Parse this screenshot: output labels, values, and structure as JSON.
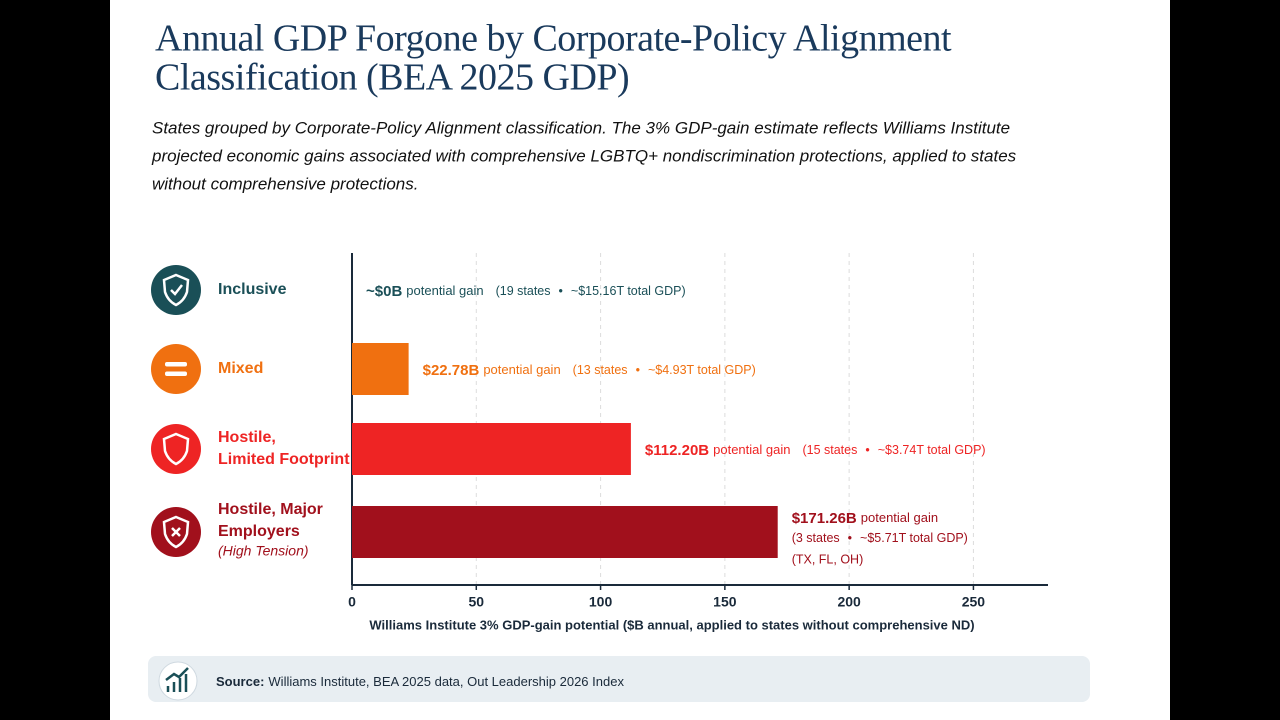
{
  "chart_data": {
    "type": "barh",
    "title": [
      "Annual GDP Forgone by Corporate-Policy Alignment",
      "Classification (BEA 2025 GDP)"
    ],
    "subtitle": [
      "States grouped by Corporate-Policy Alignment classification. The 3% GDP-gain estimate reflects Williams Institute",
      "projected economic gains associated with comprehensive LGBTQ+ nondiscrimination protections, applied to states",
      "without comprehensive protections."
    ],
    "categories": [
      [
        "Inclusive"
      ],
      [
        "Mixed"
      ],
      [
        "Hostile,",
        "Limited Footprint"
      ],
      [
        "Hostile, Major",
        "Employers"
      ]
    ],
    "category_notes": [
      null,
      null,
      null,
      "(High Tension)"
    ],
    "values": [
      0,
      22.78,
      112.2,
      171.26
    ],
    "value_labels": [
      "~$0B",
      "$22.78B",
      "$112.20B",
      "$171.26B"
    ],
    "colors": [
      "#1a4f57",
      "#f07010",
      "#ee2424",
      "#a1101c"
    ],
    "annotations": [
      {
        "gain": "potential gain",
        "states": "(19 states",
        "gdp": "~$15.16T total GDP)"
      },
      {
        "gain": "potential gain",
        "states": "(13 states",
        "gdp": "~$4.93T total GDP)"
      },
      {
        "gain": "potential gain",
        "states": "(15 states",
        "gdp": "~$3.74T total GDP)"
      },
      {
        "gain": "potential gain",
        "states": "(3 states",
        "gdp": "~$5.71T total GDP)",
        "extra": "(TX, FL, OH)"
      }
    ],
    "xlim": [
      0,
      280
    ],
    "xticks": [
      0,
      50,
      100,
      150,
      200,
      250
    ],
    "grid": true,
    "xlabel": "Williams Institute 3% GDP-gain potential ($B annual, applied to states without comprehensive ND)",
    "source_label": "Source:",
    "source": "Williams Institute, BEA 2025 data, Out Leadership 2026 Index"
  }
}
